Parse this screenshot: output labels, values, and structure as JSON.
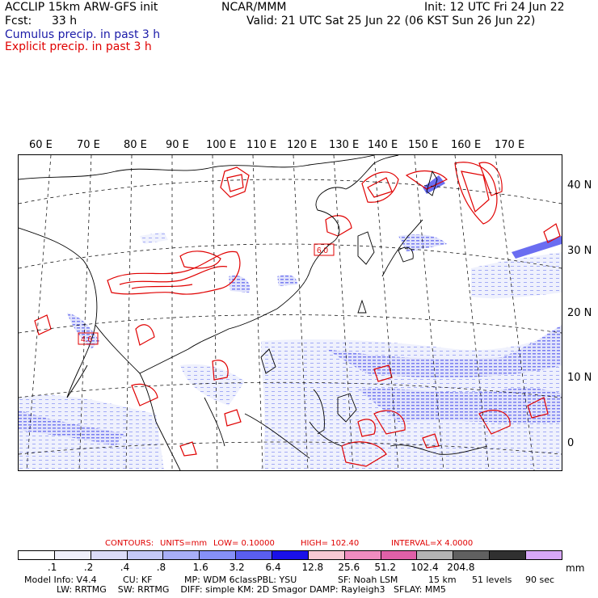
{
  "header": {
    "model": "ACCLIP 15km ARW-GFS init",
    "org": "NCAR/MMM",
    "init": "Init: 12 UTC Fri 24 Jun 22",
    "fcst_label": "Fcst:",
    "fcst_value": "33 h",
    "valid": "Valid: 21 UTC Sat 25 Jun 22 (06 KST Sun 26 Jun 22)",
    "cumulus": "Cumulus precip. in past 3 h",
    "explicit": "Explicit precip. in past 3 h"
  },
  "map": {
    "lon_labels": [
      "60 E",
      "70 E",
      "80 E",
      "90 E",
      "100 E",
      "110 E",
      "120 E",
      "130 E",
      "140 E",
      "150 E",
      "160 E",
      "170 E"
    ],
    "lat_labels": [
      "40 N",
      "30 N",
      "20 N",
      "10 N",
      "0"
    ],
    "max_labels": [
      "4.6",
      "6.0"
    ],
    "colors": {
      "cumulus": "#3a3aff",
      "explicit": "#e00000",
      "land_border": "#000000",
      "grid": "#000000"
    }
  },
  "contours": {
    "title": "CONTOURS:",
    "units": "UNITS=mm",
    "low": "LOW= 0.10000",
    "high": "HIGH= 102.40",
    "interval": "INTERVAL=X 4.0000"
  },
  "colorbar": {
    "colors": [
      "#ffffff",
      "#f0f0fa",
      "#dcdcf8",
      "#c4c8f8",
      "#a8aef8",
      "#8690f8",
      "#5a5ef0",
      "#1a10e8",
      "#f8c8d4",
      "#f08cc0",
      "#e060a8",
      "#b4b4b4",
      "#606060",
      "#303030",
      "#d8a8f8"
    ],
    "tick_labels": [
      ".1",
      ".2",
      ".4",
      ".8",
      "1.6",
      "3.2",
      "6.4",
      "12.8",
      "25.6",
      "51.2",
      "102.4",
      "204.8"
    ],
    "unit": "mm"
  },
  "footer": {
    "line1": [
      "Model Info: V4.4",
      "CU: KF",
      "MP: WDM 6class",
      "PBL: YSU",
      "SF: Noah LSM",
      "15 km",
      "51 levels",
      "90 sec"
    ],
    "line2": "LW: RRTMG    SW: RRTMG    DIFF: simple KM: 2D Smagor DAMP: Rayleigh3   SFLAY: MM5"
  }
}
